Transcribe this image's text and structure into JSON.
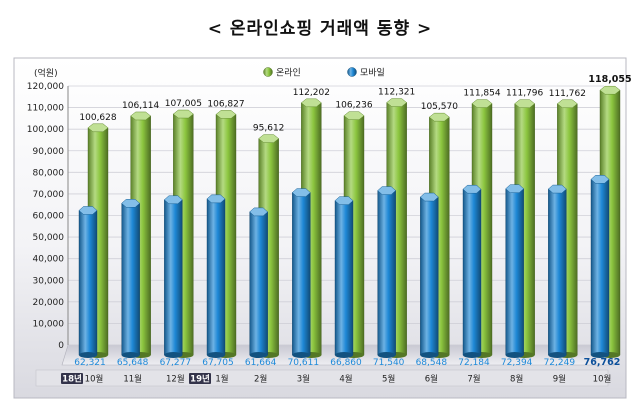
{
  "title": "< 온라인쇼핑 거래액 동향 >",
  "chart_data": {
    "type": "bar",
    "y_unit_label": "(억원)",
    "ylim": [
      0,
      120000
    ],
    "yticks": [
      0,
      10000,
      20000,
      30000,
      40000,
      50000,
      60000,
      70000,
      80000,
      90000,
      100000,
      110000,
      120000
    ],
    "ytick_labels": [
      "0",
      "10,000",
      "20,000",
      "30,000",
      "40,000",
      "50,000",
      "60,000",
      "70,000",
      "80,000",
      "90,000",
      "100,000",
      "110,000",
      "120,000"
    ],
    "categories": [
      {
        "year": "18년",
        "month": "10월"
      },
      {
        "year": "",
        "month": "11월"
      },
      {
        "year": "",
        "month": "12월"
      },
      {
        "year": "19년",
        "month": "1월"
      },
      {
        "year": "",
        "month": "2월"
      },
      {
        "year": "",
        "month": "3월"
      },
      {
        "year": "",
        "month": "4월"
      },
      {
        "year": "",
        "month": "5월"
      },
      {
        "year": "",
        "month": "6월"
      },
      {
        "year": "",
        "month": "7월"
      },
      {
        "year": "",
        "month": "8월"
      },
      {
        "year": "",
        "month": "9월"
      },
      {
        "year": "",
        "month": "10월"
      }
    ],
    "legend_position": "top-right",
    "series": [
      {
        "name": "온라인",
        "color": "#8cc63f",
        "values": [
          100628,
          106114,
          107005,
          106827,
          95612,
          112202,
          106236,
          112321,
          105570,
          111854,
          111796,
          111762,
          118055
        ],
        "labels": [
          "100,628",
          "106,114",
          "107,005",
          "106,827",
          "95,612",
          "112,202",
          "106,236",
          "112,321",
          "105,570",
          "111,854",
          "111,796",
          "111,762",
          "118,055"
        ]
      },
      {
        "name": "모바일",
        "color": "#1e88d6",
        "values": [
          62321,
          65648,
          67277,
          67705,
          61664,
          70611,
          66860,
          71540,
          68548,
          72184,
          72394,
          72249,
          76762
        ],
        "labels": [
          "62,321",
          "65,648",
          "67,277",
          "67,705",
          "61,664",
          "70,611",
          "66,860",
          "71,540",
          "68,548",
          "72,184",
          "72,394",
          "72,249",
          "76,762"
        ]
      }
    ],
    "highlight_last": true
  }
}
